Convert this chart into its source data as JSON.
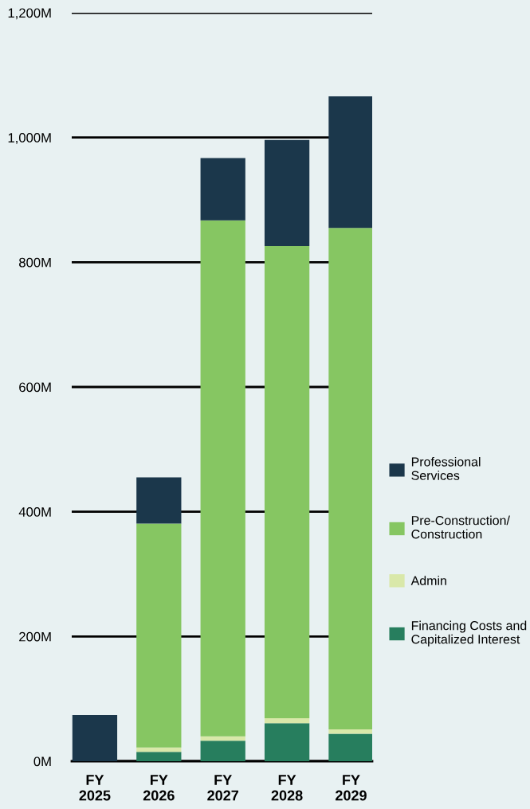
{
  "chart_data": {
    "type": "bar",
    "stacked": true,
    "categories": [
      "FY\n2025",
      "FY\n2026",
      "FY\n2027",
      "FY\n2028",
      "FY\n2029"
    ],
    "series": [
      {
        "name": "Financing Costs and\nCapitalized Interest",
        "color": "#277e5e",
        "values": [
          0,
          15,
          33,
          61,
          44
        ]
      },
      {
        "name": "Admin",
        "color": "#d9e8a9",
        "values": [
          0,
          7,
          7,
          8,
          7
        ]
      },
      {
        "name": "Pre-Construction/\nConstruction",
        "color": "#86c662",
        "values": [
          0,
          359,
          827,
          757,
          804
        ]
      },
      {
        "name": "Professional\nServices",
        "color": "#1b374b",
        "values": [
          74,
          74,
          100,
          170,
          211
        ]
      }
    ],
    "ylim": [
      0,
      1200
    ],
    "yticks": [
      {
        "value": 0,
        "label": "0M"
      },
      {
        "value": 200,
        "label": "200M"
      },
      {
        "value": 400,
        "label": "400M"
      },
      {
        "value": 600,
        "label": "600M"
      },
      {
        "value": 800,
        "label": "800M"
      },
      {
        "value": 1000,
        "label": "1,000M"
      },
      {
        "value": 1200,
        "label": "1,200M"
      }
    ],
    "grid": "y",
    "legend": "right"
  }
}
